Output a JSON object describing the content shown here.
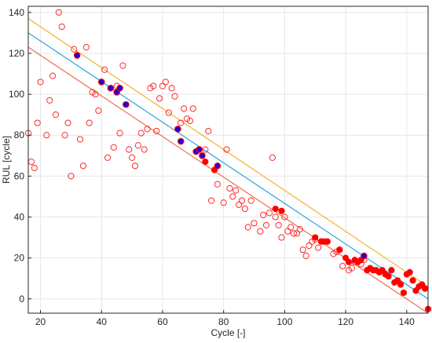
{
  "chart_data": {
    "type": "scatter",
    "title": "",
    "xlabel": "Cycle [-]",
    "ylabel": "RUL [cycle]",
    "xlim": [
      16,
      147
    ],
    "ylim": [
      -7,
      143
    ],
    "xticks": [
      20,
      40,
      60,
      80,
      100,
      120,
      140
    ],
    "yticks": [
      0,
      20,
      40,
      60,
      80,
      100,
      120,
      140
    ],
    "grid": true,
    "legend": "none",
    "colors": {
      "upper_line": "#f2b135",
      "center_line": "#2aa3dc",
      "lower_line": "#ef6e4d",
      "open_marker": "#ff2a2a",
      "filled_red": "#ff0000",
      "filled_blue": "#2b00c8",
      "grid": "#e6e6e6",
      "axis": "#262626"
    },
    "lines": [
      {
        "role": "upper",
        "x": [
          16,
          147
        ],
        "y": [
          137,
          6
        ]
      },
      {
        "role": "center",
        "x": [
          16,
          147
        ],
        "y": [
          130,
          0
        ]
      },
      {
        "role": "lower",
        "x": [
          16,
          147
        ],
        "y": [
          123,
          -7
        ]
      }
    ],
    "series": [
      {
        "marker": "open-red",
        "points": [
          [
            16,
            81
          ],
          [
            17,
            67
          ],
          [
            18,
            64
          ],
          [
            19,
            86
          ],
          [
            20,
            106
          ],
          [
            22,
            80
          ],
          [
            23,
            97
          ],
          [
            24,
            109
          ],
          [
            25,
            90
          ],
          [
            26,
            140
          ],
          [
            27,
            133
          ],
          [
            28,
            80
          ],
          [
            29,
            86
          ],
          [
            30,
            60
          ],
          [
            31,
            122
          ],
          [
            33,
            78
          ],
          [
            34,
            65
          ],
          [
            35,
            123
          ],
          [
            36,
            86
          ],
          [
            37,
            101
          ],
          [
            38,
            100
          ],
          [
            39,
            92
          ],
          [
            41,
            112
          ],
          [
            42,
            69
          ],
          [
            44,
            74
          ],
          [
            45,
            104
          ],
          [
            46,
            81
          ],
          [
            47,
            114
          ],
          [
            49,
            73
          ],
          [
            50,
            69
          ],
          [
            51,
            65
          ],
          [
            52,
            75
          ],
          [
            53,
            81
          ],
          [
            54,
            73
          ],
          [
            55,
            83
          ],
          [
            56,
            103
          ],
          [
            57,
            104
          ],
          [
            58,
            82
          ],
          [
            59,
            98
          ],
          [
            60,
            104
          ],
          [
            61,
            106
          ],
          [
            62,
            91
          ],
          [
            63,
            103
          ],
          [
            64,
            99
          ],
          [
            66,
            86
          ],
          [
            67,
            93
          ],
          [
            68,
            88
          ],
          [
            69,
            87
          ],
          [
            70,
            93
          ],
          [
            74,
            73
          ],
          [
            75,
            82
          ],
          [
            76,
            48
          ],
          [
            78,
            56
          ],
          [
            80,
            47
          ],
          [
            81,
            73
          ],
          [
            82,
            54
          ],
          [
            83,
            50
          ],
          [
            84,
            53
          ],
          [
            85,
            46
          ],
          [
            86,
            48
          ],
          [
            87,
            44
          ],
          [
            88,
            35
          ],
          [
            89,
            48
          ],
          [
            90,
            37
          ],
          [
            92,
            33
          ],
          [
            93,
            41
          ],
          [
            94,
            36
          ],
          [
            95,
            42
          ],
          [
            96,
            69
          ],
          [
            97,
            40
          ],
          [
            98,
            36
          ],
          [
            99,
            30
          ],
          [
            100,
            40
          ],
          [
            101,
            33
          ],
          [
            102,
            35
          ],
          [
            103,
            32
          ],
          [
            104,
            32
          ],
          [
            105,
            34
          ],
          [
            106,
            24
          ],
          [
            107,
            21
          ],
          [
            108,
            26
          ],
          [
            109,
            28
          ],
          [
            110,
            29
          ],
          [
            111,
            25
          ],
          [
            112,
            28
          ],
          [
            114,
            28
          ],
          [
            116,
            22
          ],
          [
            117,
            23
          ],
          [
            118,
            24
          ],
          [
            119,
            16
          ],
          [
            121,
            14
          ],
          [
            122,
            15
          ],
          [
            123,
            18
          ],
          [
            125,
            17
          ],
          [
            126,
            19
          ]
        ]
      },
      {
        "marker": "filled-red",
        "points": [
          [
            74,
            67
          ],
          [
            77,
            63
          ],
          [
            97,
            44
          ],
          [
            99,
            43
          ],
          [
            110,
            30
          ],
          [
            112,
            28
          ],
          [
            113,
            28
          ],
          [
            114,
            28
          ],
          [
            118,
            24
          ],
          [
            120,
            20
          ],
          [
            121,
            18
          ],
          [
            123,
            19
          ],
          [
            124,
            18
          ],
          [
            125,
            19
          ],
          [
            127,
            14
          ],
          [
            128,
            15
          ],
          [
            129,
            14
          ],
          [
            130,
            14
          ],
          [
            131,
            13
          ],
          [
            132,
            14
          ],
          [
            133,
            12
          ],
          [
            134,
            11
          ],
          [
            135,
            14
          ],
          [
            136,
            8
          ],
          [
            137,
            9
          ],
          [
            138,
            7
          ],
          [
            139,
            3
          ],
          [
            140,
            12
          ],
          [
            141,
            13
          ],
          [
            142,
            9
          ],
          [
            143,
            4
          ],
          [
            144,
            6
          ],
          [
            145,
            7
          ],
          [
            146,
            5
          ],
          [
            147,
            -5
          ]
        ]
      },
      {
        "marker": "filled-blue",
        "points": [
          [
            32,
            119
          ],
          [
            40,
            106
          ],
          [
            43,
            103
          ],
          [
            45,
            101
          ],
          [
            46,
            103
          ],
          [
            48,
            95
          ],
          [
            65,
            83
          ],
          [
            66,
            77
          ],
          [
            71,
            72
          ],
          [
            72,
            73
          ],
          [
            73,
            70
          ],
          [
            78,
            65
          ],
          [
            126,
            21
          ]
        ]
      }
    ]
  }
}
